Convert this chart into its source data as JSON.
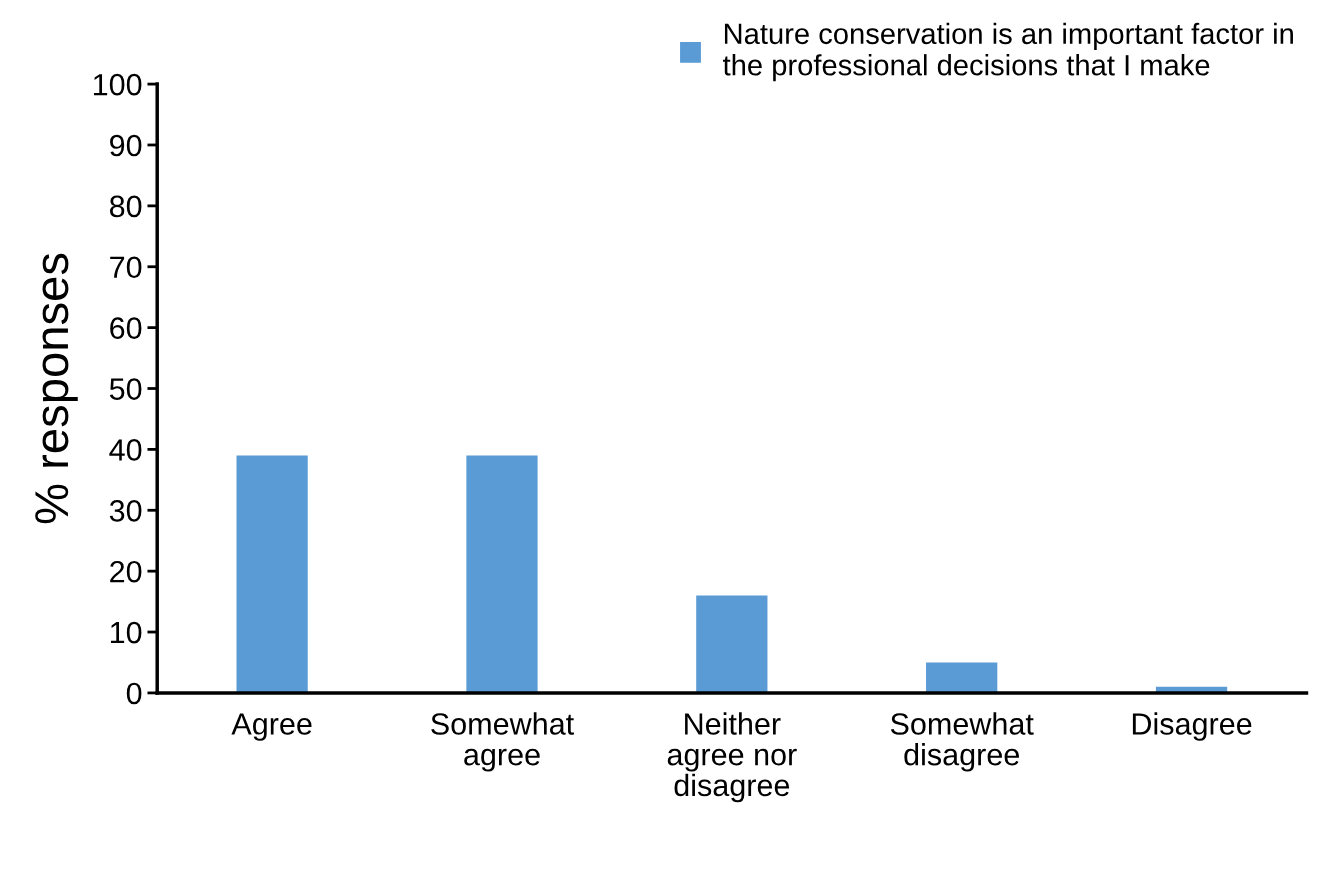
{
  "chart_data": {
    "type": "bar",
    "ylabel": "% responses",
    "categories": [
      "Agree",
      "Somewhat agree",
      "Neither agree nor disagree",
      "Somewhat disagree",
      "Disagree"
    ],
    "series": [
      {
        "name": "Nature conservation is an important factor in the professional decisions that I make",
        "color": "#5b9bd5",
        "values": [
          39,
          39,
          16,
          5,
          1
        ]
      }
    ],
    "ylim": [
      0,
      100
    ],
    "yticks": [
      0,
      10,
      20,
      30,
      40,
      50,
      60,
      70,
      80,
      90,
      100
    ],
    "legend": "top right"
  }
}
